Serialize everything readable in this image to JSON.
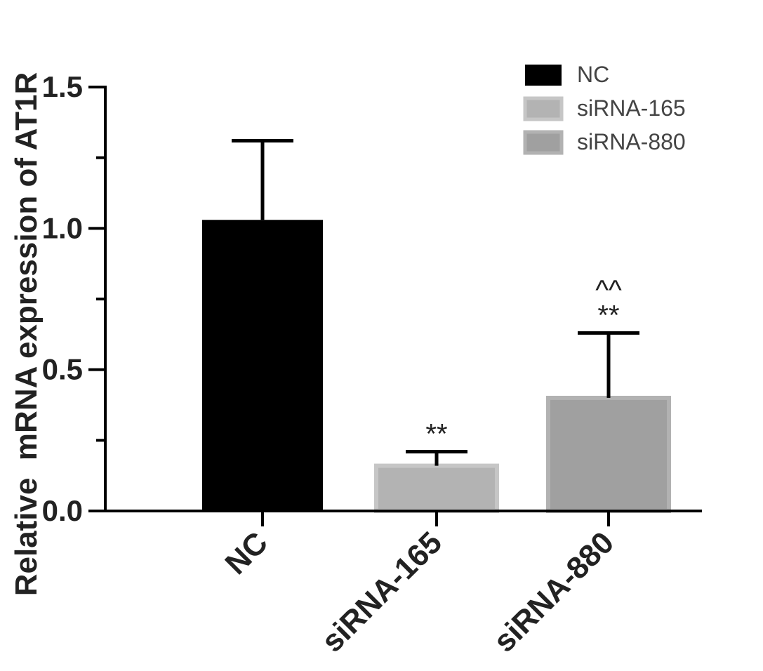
{
  "chart_data": {
    "type": "bar",
    "title": "",
    "xlabel": "",
    "ylabel": "Relative  mRNA expression of AT1R",
    "categories": [
      "NC",
      "siRNA-165",
      "siRNA-880"
    ],
    "values": [
      1.03,
      0.16,
      0.4
    ],
    "errors": [
      0.28,
      0.05,
      0.23
    ],
    "annotations": [
      "",
      "**",
      "^^\n**"
    ],
    "ylim": [
      0,
      1.5
    ],
    "yticks": [
      0.0,
      0.5,
      1.0,
      1.5
    ],
    "ytick_labels": [
      "0.0",
      "0.5",
      "1.0",
      "1.5"
    ],
    "minor_ticks": [
      0.25,
      0.75,
      1.25
    ],
    "grid": false,
    "legend": {
      "placement": "top-right",
      "entries": [
        "NC",
        "siRNA-165",
        "siRNA-880"
      ]
    },
    "colors": {
      "NC": "#000000",
      "siRNA-165": "#b3b3b3",
      "siRNA-880": "#a0a0a0",
      "border_light": "#c6c6c6",
      "border_mid": "#b2b2b2",
      "axis": "#000000"
    }
  }
}
